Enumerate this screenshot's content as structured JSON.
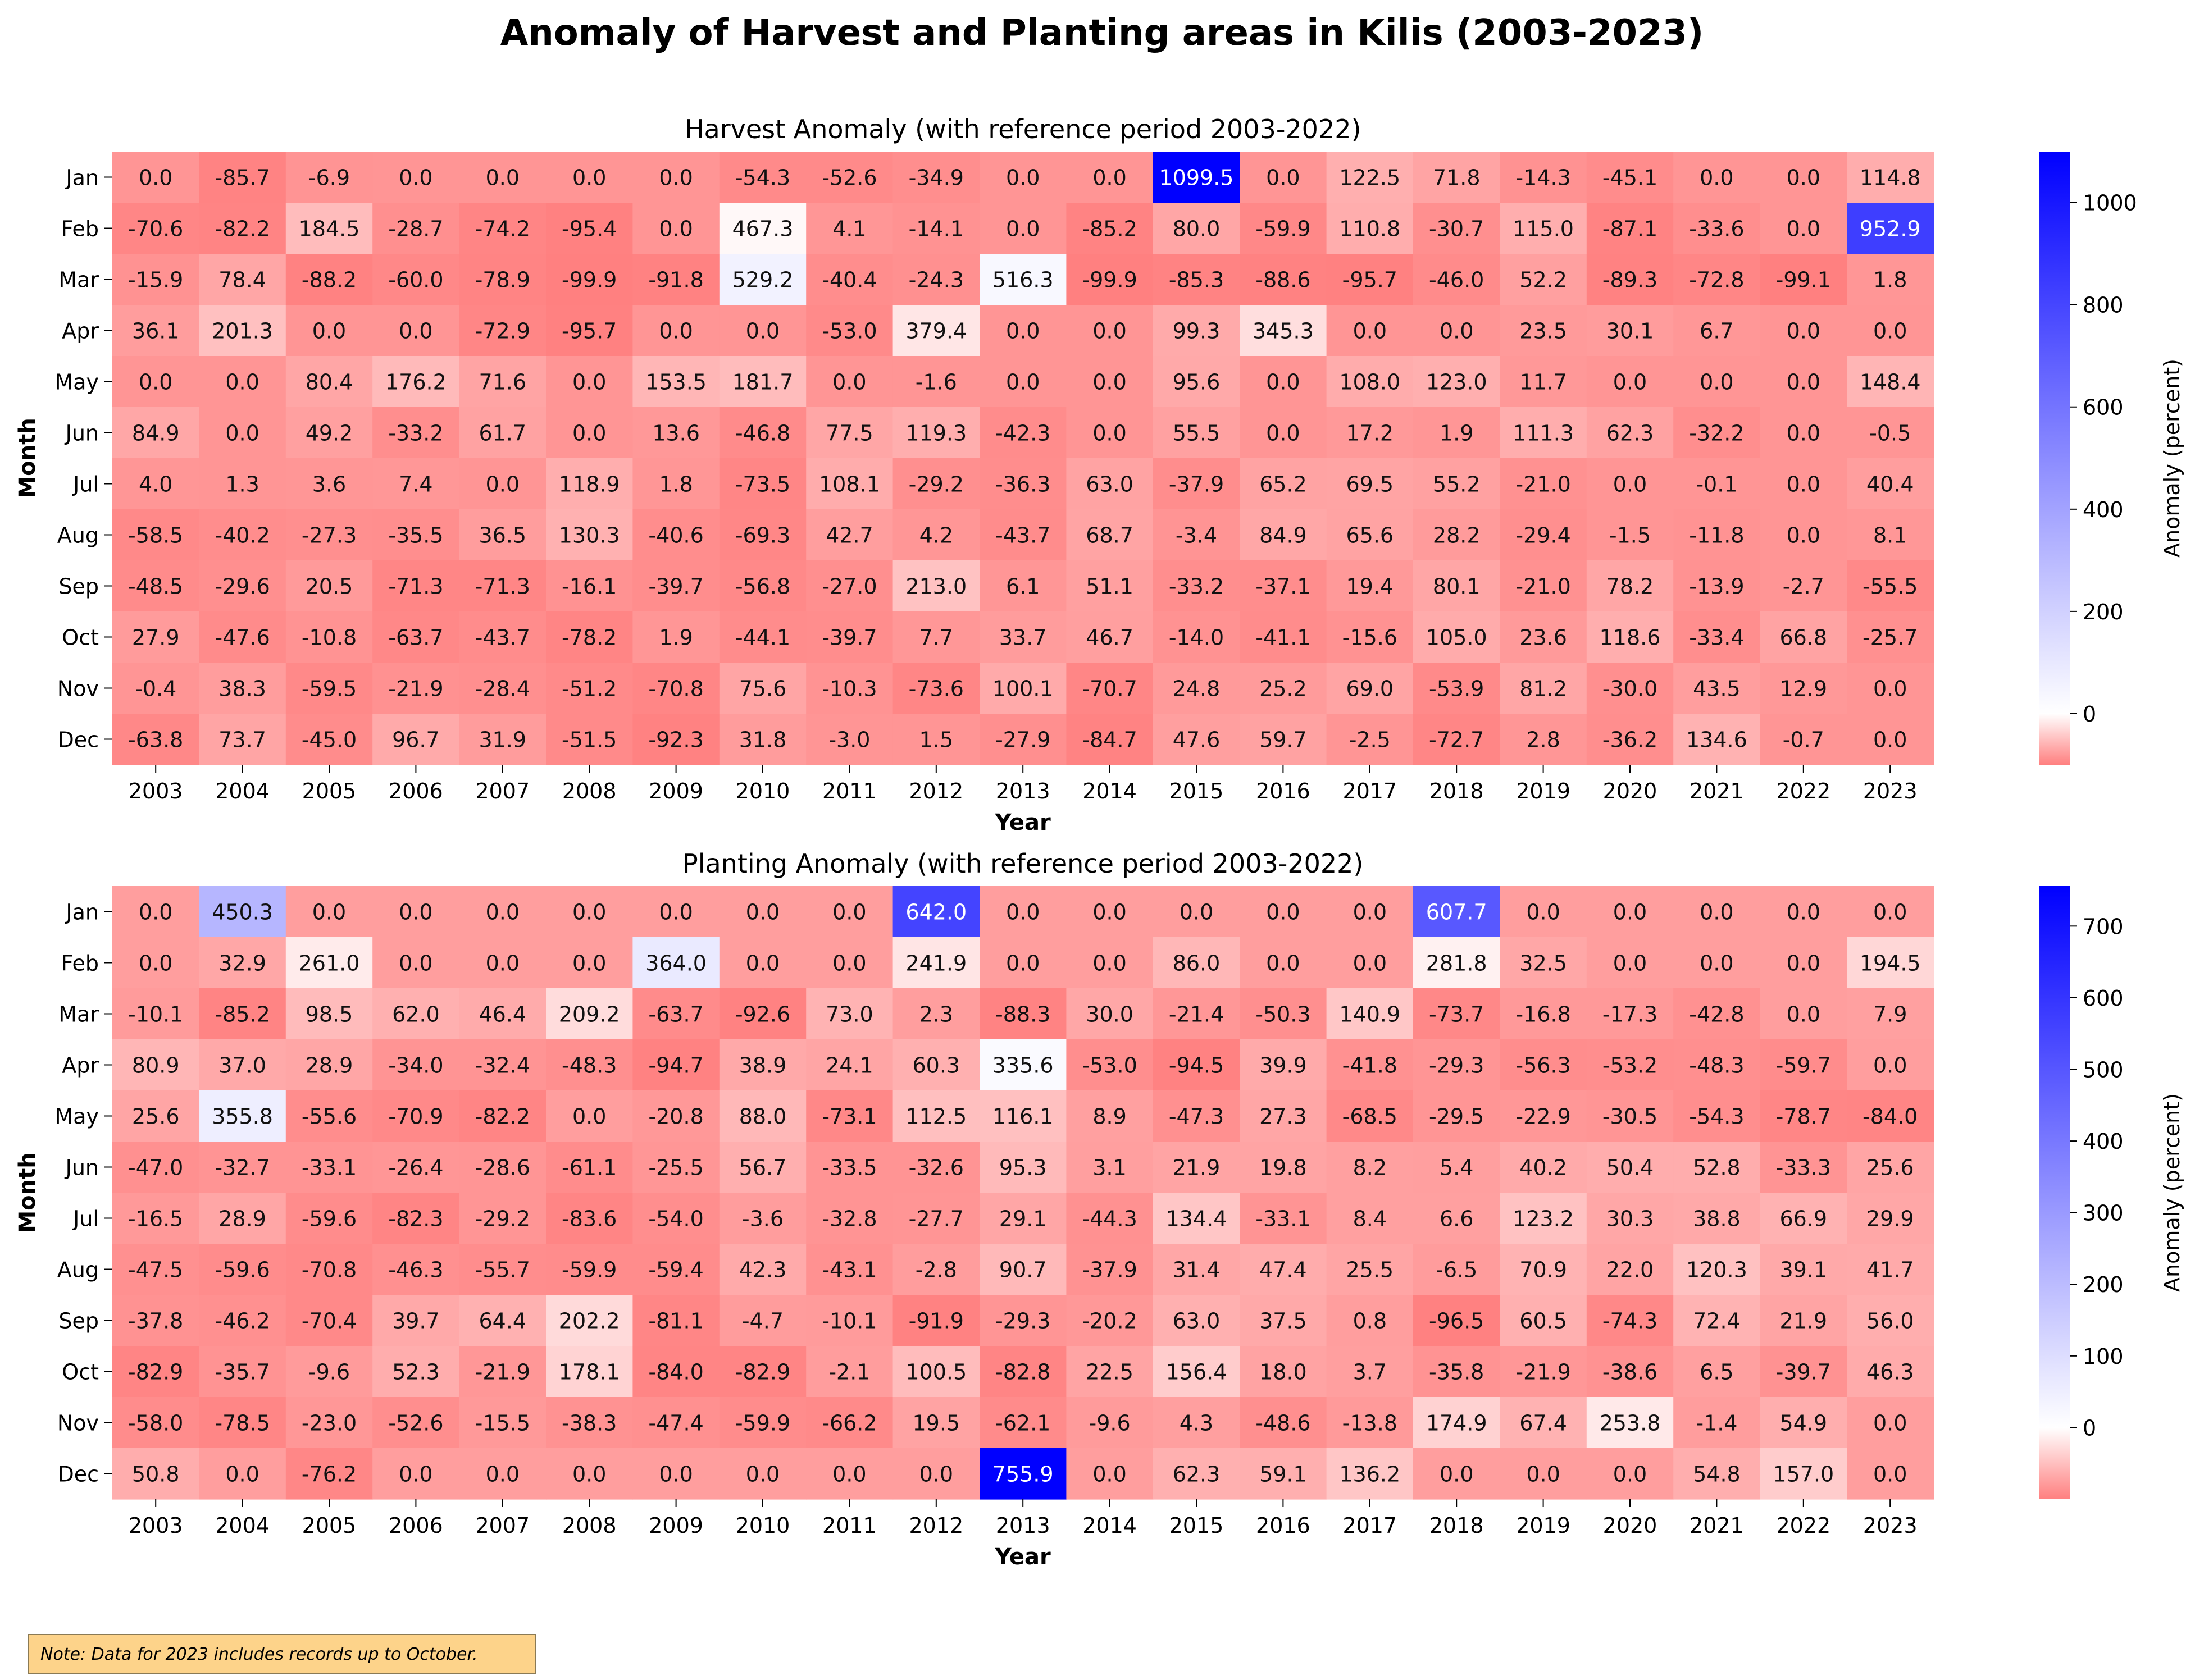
{
  "chart_data": [
    {
      "type": "heatmap",
      "title": "Harvest Anomaly (with reference period 2003-2022)",
      "xlabel": "Year",
      "ylabel": "Month",
      "colorbar_label": "Anomaly (percent)",
      "colorbar_ticks": [
        0,
        200,
        400,
        600,
        800,
        1000
      ],
      "vmin": -100,
      "vmax": 1099.5,
      "colormap": [
        "#ff8080",
        "#ffffff",
        "#0000ff"
      ],
      "x": [
        "2003",
        "2004",
        "2005",
        "2006",
        "2007",
        "2008",
        "2009",
        "2010",
        "2011",
        "2012",
        "2013",
        "2014",
        "2015",
        "2016",
        "2017",
        "2018",
        "2019",
        "2020",
        "2021",
        "2022",
        "2023"
      ],
      "y": [
        "Jan",
        "Feb",
        "Mar",
        "Apr",
        "May",
        "Jun",
        "Jul",
        "Aug",
        "Sep",
        "Oct",
        "Nov",
        "Dec"
      ],
      "values": [
        [
          "0.0",
          "-85.7",
          "-6.9",
          "0.0",
          "0.0",
          "0.0",
          "0.0",
          "-54.3",
          "-52.6",
          "-34.9",
          "0.0",
          "0.0",
          "1099.5",
          "0.0",
          "122.5",
          "71.8",
          "-14.3",
          "-45.1",
          "0.0",
          "0.0",
          "114.8"
        ],
        [
          "-70.6",
          "-82.2",
          "184.5",
          "-28.7",
          "-74.2",
          "-95.4",
          "0.0",
          "467.3",
          "4.1",
          "-14.1",
          "0.0",
          "-85.2",
          "80.0",
          "-59.9",
          "110.8",
          "-30.7",
          "115.0",
          "-87.1",
          "-33.6",
          "0.0",
          "952.9"
        ],
        [
          "-15.9",
          "78.4",
          "-88.2",
          "-60.0",
          "-78.9",
          "-99.9",
          "-91.8",
          "529.2",
          "-40.4",
          "-24.3",
          "516.3",
          "-99.9",
          "-85.3",
          "-88.6",
          "-95.7",
          "-46.0",
          "52.2",
          "-89.3",
          "-72.8",
          "-99.1",
          "1.8"
        ],
        [
          "36.1",
          "201.3",
          "0.0",
          "0.0",
          "-72.9",
          "-95.7",
          "0.0",
          "0.0",
          "-53.0",
          "379.4",
          "0.0",
          "0.0",
          "99.3",
          "345.3",
          "0.0",
          "0.0",
          "23.5",
          "30.1",
          "6.7",
          "0.0",
          "0.0"
        ],
        [
          "0.0",
          "0.0",
          "80.4",
          "176.2",
          "71.6",
          "0.0",
          "153.5",
          "181.7",
          "0.0",
          "-1.6",
          "0.0",
          "0.0",
          "95.6",
          "0.0",
          "108.0",
          "123.0",
          "11.7",
          "0.0",
          "0.0",
          "0.0",
          "148.4"
        ],
        [
          "84.9",
          "0.0",
          "49.2",
          "-33.2",
          "61.7",
          "0.0",
          "13.6",
          "-46.8",
          "77.5",
          "119.3",
          "-42.3",
          "0.0",
          "55.5",
          "0.0",
          "17.2",
          "1.9",
          "111.3",
          "62.3",
          "-32.2",
          "0.0",
          "-0.5"
        ],
        [
          "4.0",
          "1.3",
          "3.6",
          "7.4",
          "0.0",
          "118.9",
          "1.8",
          "-73.5",
          "108.1",
          "-29.2",
          "-36.3",
          "63.0",
          "-37.9",
          "65.2",
          "69.5",
          "55.2",
          "-21.0",
          "0.0",
          "-0.1",
          "0.0",
          "40.4"
        ],
        [
          "-58.5",
          "-40.2",
          "-27.3",
          "-35.5",
          "36.5",
          "130.3",
          "-40.6",
          "-69.3",
          "42.7",
          "4.2",
          "-43.7",
          "68.7",
          "-3.4",
          "84.9",
          "65.6",
          "28.2",
          "-29.4",
          "-1.5",
          "-11.8",
          "0.0",
          "8.1"
        ],
        [
          "-48.5",
          "-29.6",
          "20.5",
          "-71.3",
          "-71.3",
          "-16.1",
          "-39.7",
          "-56.8",
          "-27.0",
          "213.0",
          "6.1",
          "51.1",
          "-33.2",
          "-37.1",
          "19.4",
          "80.1",
          "-21.0",
          "78.2",
          "-13.9",
          "-2.7",
          "-55.5"
        ],
        [
          "27.9",
          "-47.6",
          "-10.8",
          "-63.7",
          "-43.7",
          "-78.2",
          "1.9",
          "-44.1",
          "-39.7",
          "7.7",
          "33.7",
          "46.7",
          "-14.0",
          "-41.1",
          "-15.6",
          "105.0",
          "23.6",
          "118.6",
          "-33.4",
          "66.8",
          "-25.7"
        ],
        [
          "-0.4",
          "38.3",
          "-59.5",
          "-21.9",
          "-28.4",
          "-51.2",
          "-70.8",
          "75.6",
          "-10.3",
          "-73.6",
          "100.1",
          "-70.7",
          "24.8",
          "25.2",
          "69.0",
          "-53.9",
          "81.2",
          "-30.0",
          "43.5",
          "12.9",
          "0.0"
        ],
        [
          "-63.8",
          "73.7",
          "-45.0",
          "96.7",
          "31.9",
          "-51.5",
          "-92.3",
          "31.8",
          "-3.0",
          "1.5",
          "-27.9",
          "-84.7",
          "47.6",
          "59.7",
          "-2.5",
          "-72.7",
          "2.8",
          "-36.2",
          "134.6",
          "-0.7",
          "0.0"
        ]
      ]
    },
    {
      "type": "heatmap",
      "title": "Planting Anomaly (with reference period 2003-2022)",
      "xlabel": "Year",
      "ylabel": "Month",
      "colorbar_label": "Anomaly (percent)",
      "colorbar_ticks": [
        0,
        100,
        200,
        300,
        400,
        500,
        600,
        700
      ],
      "vmin": -100,
      "vmax": 755.9,
      "colormap": [
        "#ff8080",
        "#ffffff",
        "#0000ff"
      ],
      "x": [
        "2003",
        "2004",
        "2005",
        "2006",
        "2007",
        "2008",
        "2009",
        "2010",
        "2011",
        "2012",
        "2013",
        "2014",
        "2015",
        "2016",
        "2017",
        "2018",
        "2019",
        "2020",
        "2021",
        "2022",
        "2023"
      ],
      "y": [
        "Jan",
        "Feb",
        "Mar",
        "Apr",
        "May",
        "Jun",
        "Jul",
        "Aug",
        "Sep",
        "Oct",
        "Nov",
        "Dec"
      ],
      "values": [
        [
          "0.0",
          "450.3",
          "0.0",
          "0.0",
          "0.0",
          "0.0",
          "0.0",
          "0.0",
          "0.0",
          "642.0",
          "0.0",
          "0.0",
          "0.0",
          "0.0",
          "0.0",
          "607.7",
          "0.0",
          "0.0",
          "0.0",
          "0.0",
          "0.0"
        ],
        [
          "0.0",
          "32.9",
          "261.0",
          "0.0",
          "0.0",
          "0.0",
          "364.0",
          "0.0",
          "0.0",
          "241.9",
          "0.0",
          "0.0",
          "86.0",
          "0.0",
          "0.0",
          "281.8",
          "32.5",
          "0.0",
          "0.0",
          "0.0",
          "194.5"
        ],
        [
          "-10.1",
          "-85.2",
          "98.5",
          "62.0",
          "46.4",
          "209.2",
          "-63.7",
          "-92.6",
          "73.0",
          "2.3",
          "-88.3",
          "30.0",
          "-21.4",
          "-50.3",
          "140.9",
          "-73.7",
          "-16.8",
          "-17.3",
          "-42.8",
          "0.0",
          "7.9"
        ],
        [
          "80.9",
          "37.0",
          "28.9",
          "-34.0",
          "-32.4",
          "-48.3",
          "-94.7",
          "38.9",
          "24.1",
          "60.3",
          "335.6",
          "-53.0",
          "-94.5",
          "39.9",
          "-41.8",
          "-29.3",
          "-56.3",
          "-53.2",
          "-48.3",
          "-59.7",
          "0.0"
        ],
        [
          "25.6",
          "355.8",
          "-55.6",
          "-70.9",
          "-82.2",
          "0.0",
          "-20.8",
          "88.0",
          "-73.1",
          "112.5",
          "116.1",
          "8.9",
          "-47.3",
          "27.3",
          "-68.5",
          "-29.5",
          "-22.9",
          "-30.5",
          "-54.3",
          "-78.7",
          "-84.0"
        ],
        [
          "-47.0",
          "-32.7",
          "-33.1",
          "-26.4",
          "-28.6",
          "-61.1",
          "-25.5",
          "56.7",
          "-33.5",
          "-32.6",
          "95.3",
          "3.1",
          "21.9",
          "19.8",
          "8.2",
          "5.4",
          "40.2",
          "50.4",
          "52.8",
          "-33.3",
          "25.6"
        ],
        [
          "-16.5",
          "28.9",
          "-59.6",
          "-82.3",
          "-29.2",
          "-83.6",
          "-54.0",
          "-3.6",
          "-32.8",
          "-27.7",
          "29.1",
          "-44.3",
          "134.4",
          "-33.1",
          "8.4",
          "6.6",
          "123.2",
          "30.3",
          "38.8",
          "66.9",
          "29.9"
        ],
        [
          "-47.5",
          "-59.6",
          "-70.8",
          "-46.3",
          "-55.7",
          "-59.9",
          "-59.4",
          "42.3",
          "-43.1",
          "-2.8",
          "90.7",
          "-37.9",
          "31.4",
          "47.4",
          "25.5",
          "-6.5",
          "70.9",
          "22.0",
          "120.3",
          "39.1",
          "41.7"
        ],
        [
          "-37.8",
          "-46.2",
          "-70.4",
          "39.7",
          "64.4",
          "202.2",
          "-81.1",
          "-4.7",
          "-10.1",
          "-91.9",
          "-29.3",
          "-20.2",
          "63.0",
          "37.5",
          "0.8",
          "-96.5",
          "60.5",
          "-74.3",
          "72.4",
          "21.9",
          "56.0"
        ],
        [
          "-82.9",
          "-35.7",
          "-9.6",
          "52.3",
          "-21.9",
          "178.1",
          "-84.0",
          "-82.9",
          "-2.1",
          "100.5",
          "-82.8",
          "22.5",
          "156.4",
          "18.0",
          "3.7",
          "-35.8",
          "-21.9",
          "-38.6",
          "6.5",
          "-39.7",
          "46.3"
        ],
        [
          "-58.0",
          "-78.5",
          "-23.0",
          "-52.6",
          "-15.5",
          "-38.3",
          "-47.4",
          "-59.9",
          "-66.2",
          "19.5",
          "-62.1",
          "-9.6",
          "4.3",
          "-48.6",
          "-13.8",
          "174.9",
          "67.4",
          "253.8",
          "-1.4",
          "54.9",
          "0.0"
        ],
        [
          "50.8",
          "0.0",
          "-76.2",
          "0.0",
          "0.0",
          "0.0",
          "0.0",
          "0.0",
          "0.0",
          "0.0",
          "755.9",
          "0.0",
          "62.3",
          "59.1",
          "136.2",
          "0.0",
          "0.0",
          "0.0",
          "54.8",
          "157.0",
          "0.0"
        ]
      ]
    }
  ],
  "suptitle": "Anomaly of Harvest and Planting areas in Kilis (2003-2023)",
  "note": "Note: Data for 2023 includes records up to October."
}
